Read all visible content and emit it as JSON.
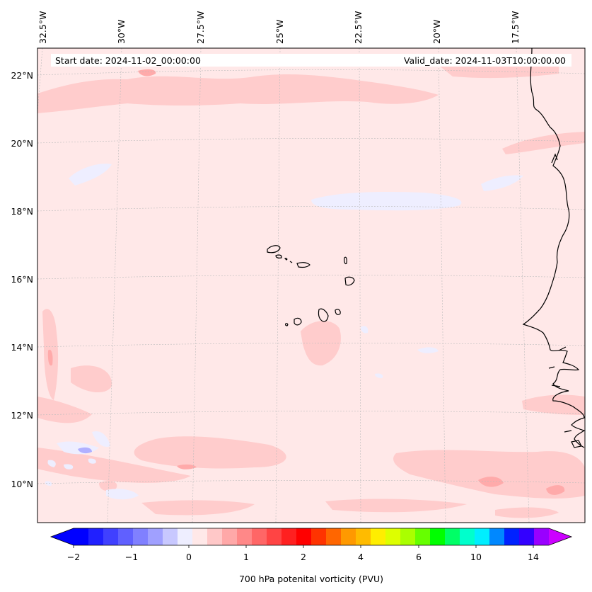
{
  "header": {
    "start_date": "Start date: 2024-11-02_00:00:00",
    "valid_date": "Valid_date: 2024-11-03T10:00:00.00"
  },
  "lon_labels": [
    "32.5°W",
    "30°W",
    "27.5°W",
    "25°W",
    "22.5°W",
    "20°W",
    "17.5°W"
  ],
  "lat_labels": [
    "22°N",
    "20°N",
    "18°N",
    "16°N",
    "14°N",
    "12°N",
    "10°N"
  ],
  "colorbar": {
    "label": "700 hPa potenital vorticity (PVU)",
    "ticks": [
      "−2",
      "−1",
      "0",
      "1",
      "2",
      "4",
      "6",
      "10",
      "14"
    ],
    "colors": [
      "#0000ff",
      "#2020ff",
      "#4040ff",
      "#6060ff",
      "#8080ff",
      "#a0a0ff",
      "#c8c8ff",
      "#eeeeff",
      "#ffe8e8",
      "#ffc8c8",
      "#ffa8a8",
      "#ff8888",
      "#ff6666",
      "#ff4444",
      "#ff2020",
      "#ff0000",
      "#ff3300",
      "#ff6600",
      "#ff9900",
      "#ffbb00",
      "#ffee00",
      "#ddff00",
      "#aaff00",
      "#66ff00",
      "#00ff00",
      "#00ff66",
      "#00ffcc",
      "#00eeff",
      "#0088ff",
      "#0022ff",
      "#3300ff",
      "#9900ff"
    ],
    "under_color": "#0000ff",
    "over_color": "#cc00ff"
  },
  "field_colors": {
    "background": "#ffe8e8",
    "positive": "#ffcccc",
    "positive_strong": "#ffaaaa",
    "negative": "#eeeeff",
    "negative_strong": "#b0b0ff"
  }
}
